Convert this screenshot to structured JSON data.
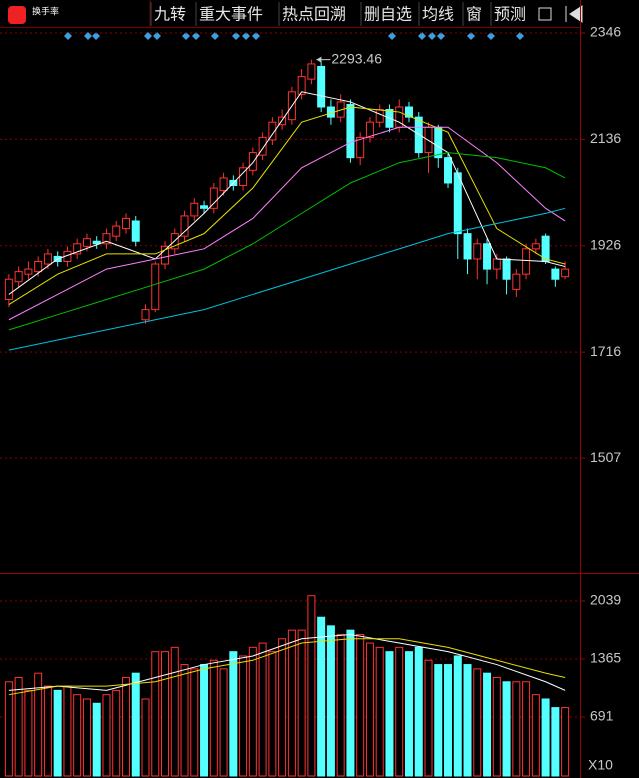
{
  "toolbar": {
    "logo": "换手率",
    "tabs": [
      "九转",
      "重大事件",
      "热点回溯",
      "删自选",
      "均线",
      "窗",
      "预测"
    ]
  },
  "chart_data": [
    {
      "type": "candlestick",
      "ylim": [
        1286,
        2352
      ],
      "yticks": [
        2346,
        2136,
        1926,
        1716,
        1507
      ],
      "up_color": "#ff3232",
      "down_color": "#54ffff",
      "grid": true,
      "open": [
        1820,
        1855,
        1870,
        1875,
        1890,
        1905,
        1895,
        1910,
        1925,
        1935,
        1930,
        1945,
        1960,
        1975,
        1780,
        1800,
        1890,
        1920,
        1945,
        1985,
        2005,
        2000,
        2035,
        2055,
        2045,
        2075,
        2105,
        2135,
        2165,
        2175,
        2225,
        2255,
        2280,
        2200,
        2180,
        2205,
        2100,
        2140,
        2170,
        2195,
        2160,
        2200,
        2180,
        2110,
        2160,
        2100,
        2070,
        1950,
        1900,
        1930,
        1880,
        1900,
        1840,
        1870,
        1920,
        1945,
        1880,
        1865
      ],
      "high": [
        1870,
        1885,
        1895,
        1905,
        1920,
        1915,
        1925,
        1940,
        1950,
        1945,
        1960,
        1975,
        1990,
        1985,
        1810,
        1895,
        1935,
        1960,
        1995,
        2020,
        2015,
        2050,
        2070,
        2065,
        2090,
        2120,
        2150,
        2180,
        2195,
        2240,
        2275,
        2293.46,
        2290,
        2215,
        2225,
        2215,
        2150,
        2180,
        2205,
        2205,
        2215,
        2210,
        2190,
        2170,
        2165,
        2110,
        2080,
        1960,
        1940,
        1940,
        1910,
        1905,
        1880,
        1930,
        1940,
        1950,
        1885,
        1895
      ],
      "low": [
        1805,
        1845,
        1860,
        1865,
        1880,
        1885,
        1885,
        1900,
        1915,
        1920,
        1920,
        1935,
        1950,
        1925,
        1772,
        1795,
        1880,
        1910,
        1935,
        1975,
        1990,
        1990,
        2025,
        2035,
        2035,
        2065,
        2095,
        2125,
        2155,
        2165,
        2215,
        2245,
        2190,
        2165,
        2170,
        2090,
        2085,
        2130,
        2160,
        2150,
        2150,
        2170,
        2100,
        2070,
        2080,
        2040,
        1900,
        1870,
        1860,
        1850,
        1860,
        1830,
        1825,
        1860,
        1910,
        1890,
        1845,
        1860
      ],
      "close": [
        1860,
        1875,
        1880,
        1895,
        1910,
        1895,
        1915,
        1930,
        1940,
        1930,
        1950,
        1965,
        1980,
        1935,
        1800,
        1890,
        1925,
        1950,
        1985,
        2010,
        2000,
        2040,
        2060,
        2045,
        2080,
        2110,
        2140,
        2170,
        2180,
        2230,
        2260,
        2285,
        2200,
        2180,
        2210,
        2100,
        2140,
        2170,
        2195,
        2160,
        2200,
        2180,
        2110,
        2160,
        2100,
        2050,
        1950,
        1900,
        1930,
        1880,
        1900,
        1860,
        1870,
        1920,
        1930,
        1895,
        1860,
        1880
      ],
      "annotation_index": 31,
      "line_x": [
        0,
        5,
        10,
        15,
        20,
        25,
        30,
        35,
        40,
        45,
        50,
        55,
        57
      ],
      "lines": [
        {
          "color": "#ffffff",
          "values": [
            1830,
            1900,
            1935,
            1900,
            1990,
            2090,
            2230,
            2210,
            2170,
            2110,
            1900,
            1895,
            1885
          ]
        },
        {
          "color": "#e8e000",
          "values": [
            1810,
            1870,
            1910,
            1910,
            1950,
            2040,
            2170,
            2200,
            2190,
            2150,
            1960,
            1900,
            1890
          ]
        },
        {
          "color": "#ff80ff",
          "values": [
            1780,
            1830,
            1880,
            1900,
            1920,
            1980,
            2080,
            2130,
            2160,
            2160,
            2090,
            2000,
            1975
          ]
        },
        {
          "color": "#00c000",
          "values": [
            1760,
            1790,
            1820,
            1850,
            1880,
            1930,
            1990,
            2050,
            2090,
            2110,
            2100,
            2080,
            2060
          ]
        },
        {
          "color": "#00c0e0",
          "values": [
            1720,
            1740,
            1760,
            1780,
            1800,
            1830,
            1860,
            1890,
            1920,
            1950,
            1970,
            1990,
            2000
          ]
        }
      ]
    },
    {
      "type": "volume",
      "ylim": [
        5,
        2306
      ],
      "yticks": [
        2039,
        1365,
        691
      ],
      "unit_label": "X10",
      "grid": true,
      "values": [
        1100,
        1150,
        1000,
        1200,
        1050,
        1000,
        1050,
        950,
        900,
        850,
        950,
        1000,
        1150,
        1200,
        900,
        1450,
        1450,
        1500,
        1300,
        1250,
        1300,
        1350,
        1250,
        1450,
        1400,
        1500,
        1550,
        1450,
        1600,
        1700,
        1700,
        2100,
        1850,
        1750,
        1650,
        1700,
        1650,
        1550,
        1500,
        1450,
        1500,
        1450,
        1500,
        1350,
        1300,
        1300,
        1400,
        1300,
        1250,
        1200,
        1150,
        1100,
        1100,
        1100,
        950,
        900,
        800,
        800
      ],
      "line_x": [
        0,
        5,
        10,
        15,
        20,
        25,
        30,
        35,
        40,
        45,
        50,
        55,
        57
      ],
      "lines": [
        {
          "color": "#ffffff",
          "values": [
            1000,
            1050,
            1000,
            1150,
            1300,
            1400,
            1600,
            1650,
            1550,
            1450,
            1300,
            1100,
            1000
          ]
        },
        {
          "color": "#e8e000",
          "values": [
            950,
            1050,
            1050,
            1100,
            1250,
            1350,
            1550,
            1600,
            1600,
            1500,
            1350,
            1200,
            1150
          ]
        }
      ]
    }
  ]
}
